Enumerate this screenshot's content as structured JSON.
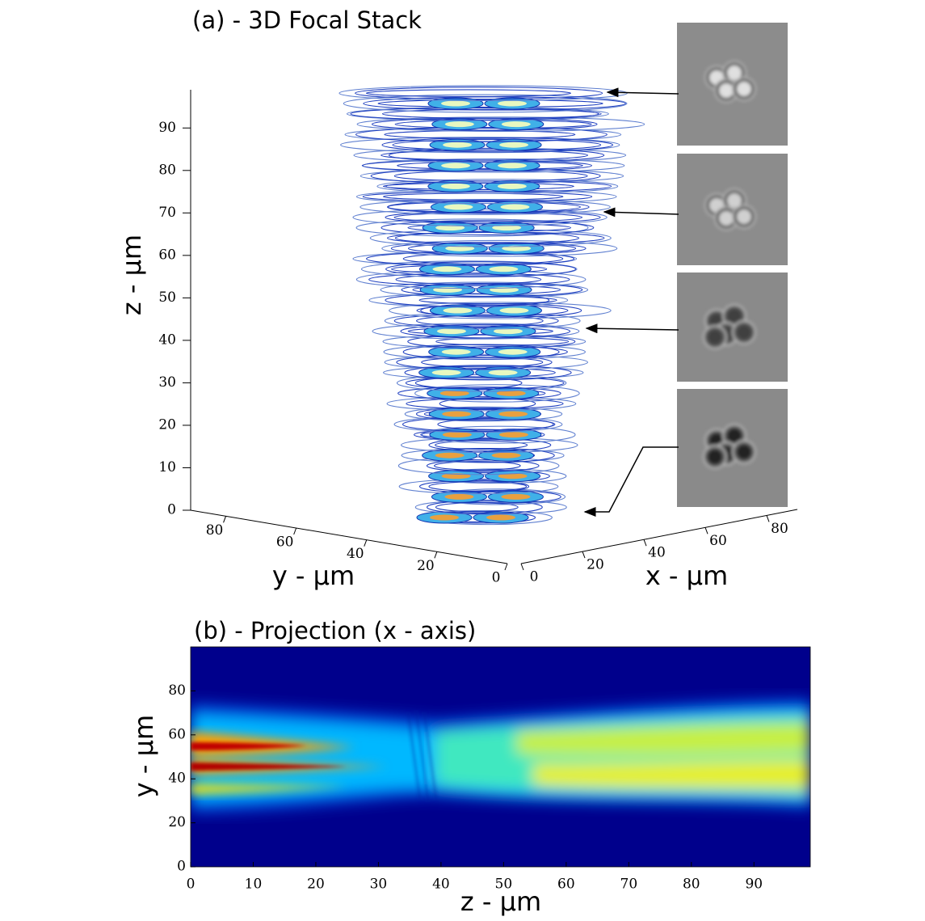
{
  "chart_data": [
    {
      "type": "contour3d",
      "title": "(a) - 3D Focal Stack",
      "xlabel": "x - μm",
      "ylabel": "y - μm",
      "zlabel": "z - μm",
      "xlim": [
        0,
        90
      ],
      "xticks": [
        0,
        20,
        40,
        60,
        80
      ],
      "ylim": [
        0,
        90
      ],
      "yticks": [
        0,
        20,
        40,
        60,
        80
      ],
      "zlim": [
        0,
        99
      ],
      "zticks": [
        0,
        10,
        20,
        30,
        40,
        50,
        60,
        70,
        80,
        90
      ]
    },
    {
      "type": "heatmap",
      "title": "(b) - Projection (x - axis)",
      "xlabel": "z - μm",
      "ylabel": "y - μm",
      "xlim": [
        0,
        99
      ],
      "xticks": [
        0,
        10,
        20,
        30,
        40,
        50,
        60,
        70,
        80,
        90
      ],
      "ylim": [
        0,
        100
      ],
      "yticks": [
        0,
        20,
        40,
        60,
        80
      ]
    }
  ]
}
